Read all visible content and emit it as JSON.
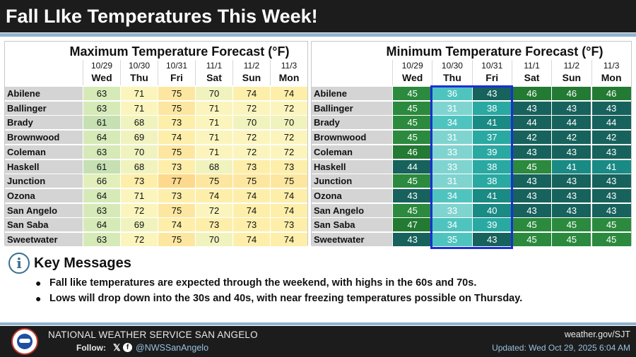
{
  "header": {
    "title": "Fall LIke Temperatures This Week!"
  },
  "days": [
    {
      "date": "10/29",
      "weekday": "Wed"
    },
    {
      "date": "10/30",
      "weekday": "Thu"
    },
    {
      "date": "10/31",
      "weekday": "Fri"
    },
    {
      "date": "11/1",
      "weekday": "Sat"
    },
    {
      "date": "11/2",
      "weekday": "Sun"
    },
    {
      "date": "11/3",
      "weekday": "Mon"
    }
  ],
  "cities": [
    "Abilene",
    "Ballinger",
    "Brady",
    "Brownwood",
    "Coleman",
    "Haskell",
    "Junction",
    "Ozona",
    "San Angelo",
    "San Saba",
    "Sweetwater"
  ],
  "max_table": {
    "title": "Maximum Temperature Forecast (°F)",
    "values": [
      [
        63,
        71,
        75,
        70,
        74,
        74
      ],
      [
        63,
        71,
        75,
        71,
        72,
        72
      ],
      [
        61,
        68,
        73,
        71,
        70,
        70
      ],
      [
        64,
        69,
        74,
        71,
        72,
        72
      ],
      [
        63,
        70,
        75,
        71,
        72,
        72
      ],
      [
        61,
        68,
        73,
        68,
        73,
        73
      ],
      [
        66,
        73,
        77,
        75,
        75,
        75
      ],
      [
        64,
        71,
        73,
        74,
        74,
        74
      ],
      [
        63,
        72,
        75,
        72,
        74,
        74
      ],
      [
        64,
        69,
        74,
        73,
        73,
        73
      ],
      [
        63,
        72,
        75,
        70,
        74,
        74
      ]
    ]
  },
  "min_table": {
    "title": "Minimum Temperature Forecast (°F)",
    "values": [
      [
        45,
        36,
        43,
        46,
        46,
        46
      ],
      [
        45,
        31,
        38,
        43,
        43,
        43
      ],
      [
        45,
        34,
        41,
        44,
        44,
        44
      ],
      [
        45,
        31,
        37,
        42,
        42,
        42
      ],
      [
        46,
        33,
        39,
        43,
        43,
        43
      ],
      [
        44,
        33,
        38,
        45,
        41,
        41
      ],
      [
        45,
        31,
        38,
        43,
        43,
        43
      ],
      [
        43,
        34,
        41,
        43,
        43,
        43
      ],
      [
        45,
        33,
        40,
        43,
        43,
        43
      ],
      [
        47,
        34,
        39,
        45,
        45,
        45
      ],
      [
        43,
        35,
        43,
        45,
        45,
        45
      ]
    ]
  },
  "key_messages": {
    "title": "Key Messages",
    "bullets": [
      "Fall like temperatures are expected through the weekend, with highs in the 60s and 70s.",
      "Lows will drop down into the 30s and 40s, with near freezing temperatures possible on Thursday."
    ]
  },
  "footer": {
    "org": "NATIONAL WEATHER SERVICE SAN ANGELO",
    "follow_label": "Follow:",
    "handle": "@NWSSanAngelo",
    "site": "weather.gov/SJT",
    "updated": "Updated: Wed Oct 29, 2025 6:04 AM"
  },
  "colors": {
    "highlight_border": "#1a2fd6",
    "header_bg": "#1c1c1c",
    "accent_rule": "#8fb3cf"
  }
}
